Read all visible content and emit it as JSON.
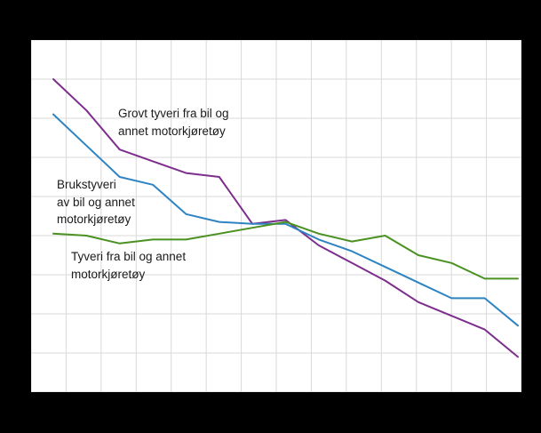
{
  "frame": {
    "background": "#000000",
    "plot_background": "#ffffff",
    "grid_color": "#d9d9d9"
  },
  "chart_data": {
    "type": "line",
    "title": "",
    "xlabel": "",
    "ylabel": "",
    "x_tick_labels": [],
    "y_tick_labels": [],
    "ylim": [
      0,
      9
    ],
    "x_points": 15,
    "grid": {
      "visible": true,
      "vertical_intervals": 14,
      "horizontal_intervals": 9
    },
    "legend_position": "annotations-inline",
    "series": [
      {
        "name": "Grovt tyveri fra bil og annet motorkjøretøy",
        "color": "#7d2e8d",
        "values": [
          8.0,
          7.2,
          6.2,
          5.9,
          5.6,
          5.5,
          4.3,
          4.4,
          3.75,
          3.3,
          2.85,
          2.3,
          1.95,
          1.6,
          0.9
        ]
      },
      {
        "name": "Brukstyveri av bil og annet motorkjøretøy",
        "color": "#2e84c2",
        "values": [
          7.1,
          6.3,
          5.5,
          5.3,
          4.55,
          4.35,
          4.3,
          4.3,
          3.9,
          3.6,
          3.2,
          2.8,
          2.4,
          2.4,
          1.7
        ]
      },
      {
        "name": "Tyveri fra bil og annet motorkjøretøy",
        "color": "#4a9122",
        "values": [
          4.05,
          4.0,
          3.8,
          3.9,
          3.9,
          4.05,
          4.2,
          4.35,
          4.05,
          3.85,
          4.0,
          3.5,
          3.3,
          2.9,
          2.9
        ]
      }
    ],
    "annotations": [
      {
        "id": "grovt",
        "lines": [
          "Grovt tyveri fra bil  og",
          "annet motorkjøretøy",
          ""
        ]
      },
      {
        "id": "bruks",
        "lines": [
          "Brukstyveri",
          "av bil og annet",
          "motorkjøretøy"
        ]
      },
      {
        "id": "tyveri",
        "lines": [
          "Tyveri fra bil og annet",
          "motorkjøretøy",
          ""
        ]
      }
    ]
  }
}
